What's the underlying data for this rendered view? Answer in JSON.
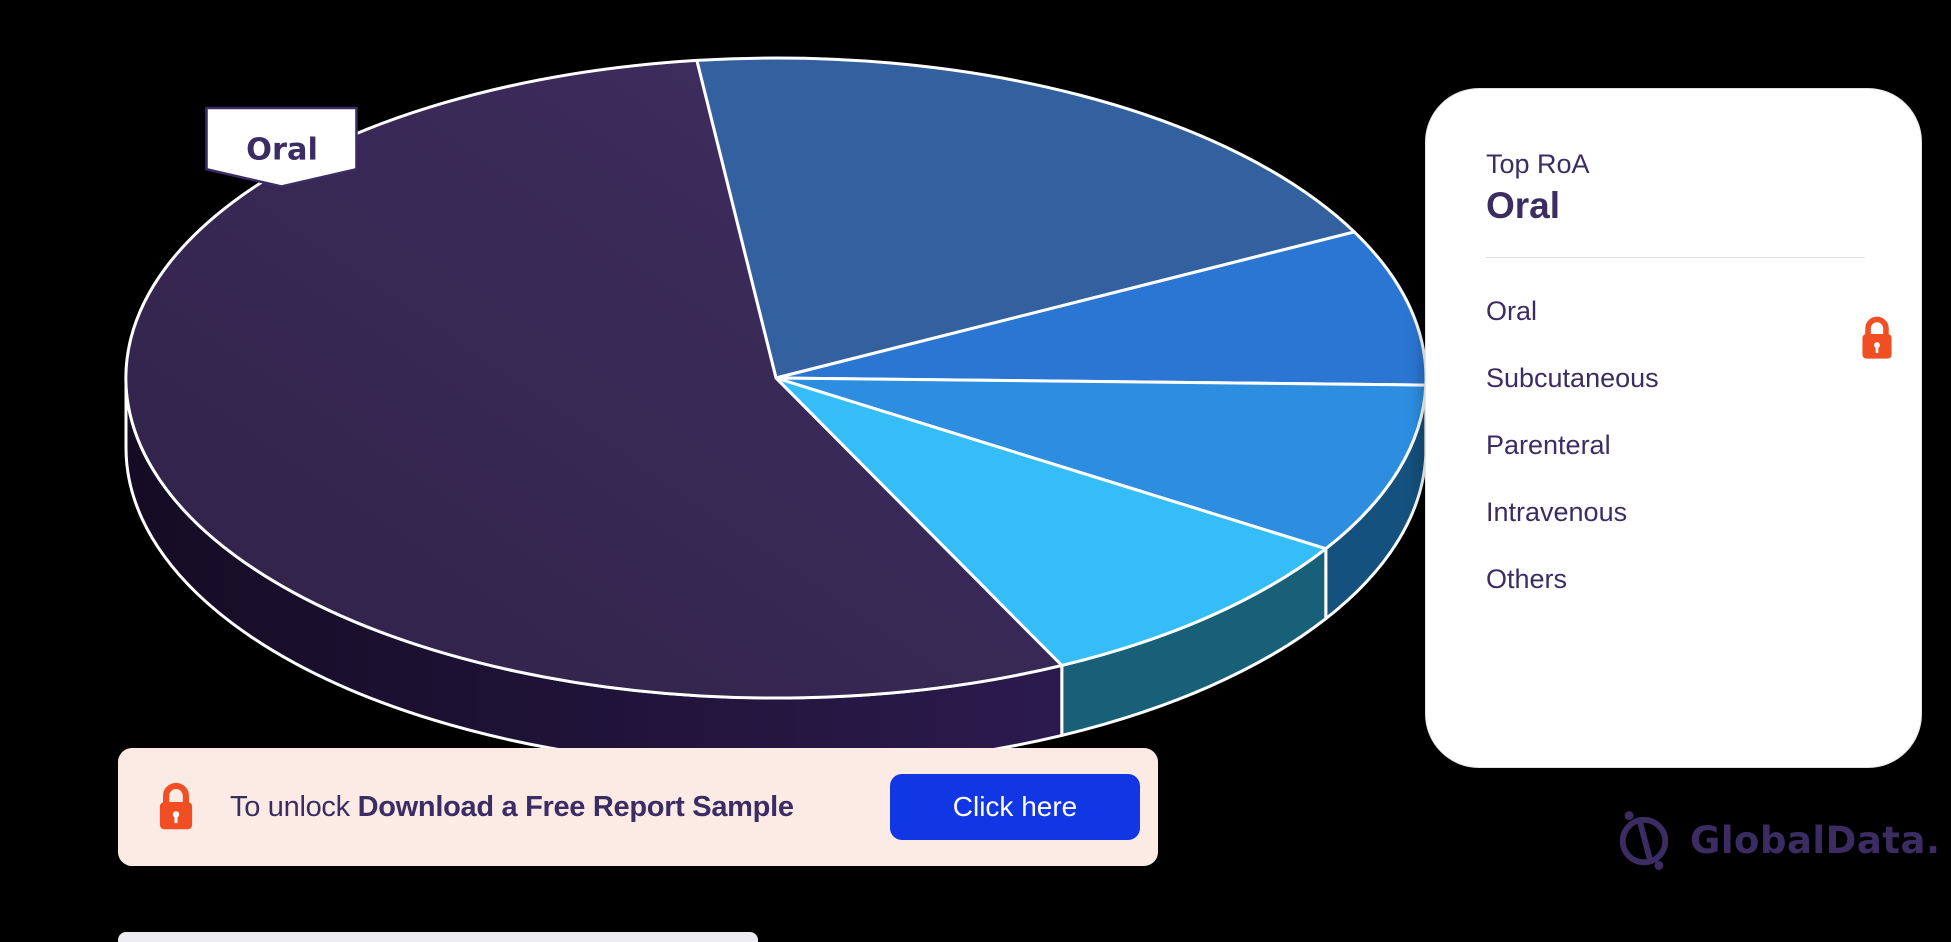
{
  "colors": {
    "page_background": "#000000",
    "text_purple": "#3b2d63",
    "card_background": "#ffffff",
    "card_border": "#e3e3e6",
    "divider": "#dcdcdc",
    "lock_orange": "#f24e24",
    "banner_background": "#fcebe5",
    "button_blue": "#1136e4",
    "button_text": "#ffffff",
    "pie_stroke": "#ffffff",
    "logo_purple": "#3b2d63",
    "cropped_strip": "#ececf1"
  },
  "chart_data": {
    "type": "pie",
    "style": "3d",
    "title": "",
    "callout_label": "Oral",
    "legend_title": "Top RoA",
    "legend_top_value": "Oral",
    "legend_position": "right",
    "categories": [
      "Oral",
      "Subcutaneous",
      "Parenteral",
      "Intravenous",
      "Others"
    ],
    "values": [
      55.3,
      19.4,
      7.9,
      8.6,
      8.8
    ],
    "colors": [
      "#3a2a58",
      "#33609e",
      "#2b76d2",
      "#2d8ee0",
      "#34bdf6"
    ],
    "side_colors": [
      "#1d1133",
      "#1c4877",
      "#164f86",
      "#14517e",
      "#186078"
    ]
  },
  "unlock_banner": {
    "prefix": "To unlock",
    "bold_text": "Download a Free Report Sample",
    "button_label": "Click here"
  },
  "brand": {
    "logo_text": "GlobalData."
  }
}
